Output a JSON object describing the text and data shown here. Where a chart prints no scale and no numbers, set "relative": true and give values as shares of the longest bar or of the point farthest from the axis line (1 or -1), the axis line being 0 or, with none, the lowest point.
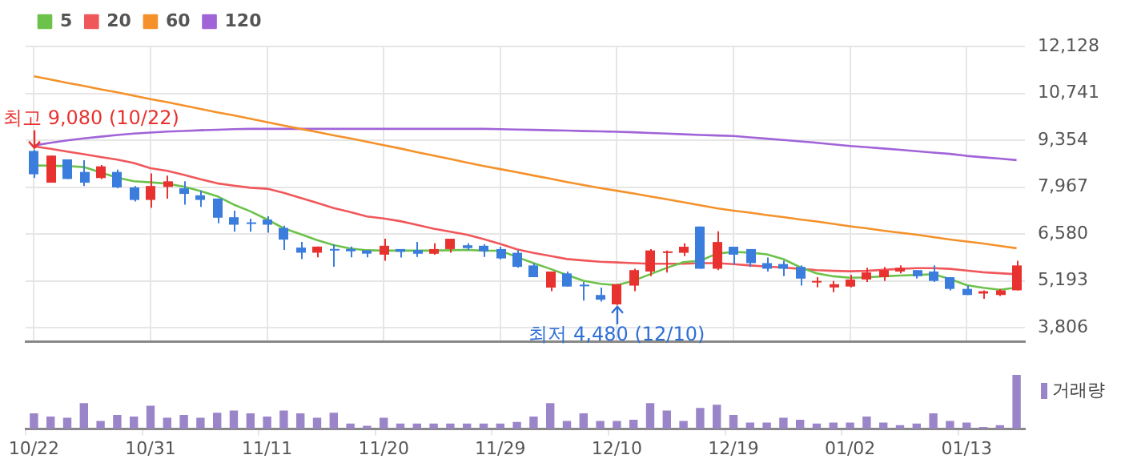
{
  "chart_data": [
    {
      "type": "candlestick",
      "categories": [
        "10/22",
        null,
        null,
        null,
        null,
        null,
        null,
        "10/31",
        null,
        null,
        null,
        null,
        null,
        null,
        "11/11",
        null,
        null,
        null,
        null,
        null,
        null,
        "11/20",
        null,
        null,
        null,
        null,
        null,
        null,
        "11/29",
        null,
        null,
        null,
        null,
        null,
        null,
        "12/10",
        null,
        null,
        null,
        null,
        null,
        null,
        "12/19",
        null,
        null,
        null,
        null,
        null,
        null,
        "01/02",
        null,
        null,
        null,
        null,
        null,
        null,
        "01/13",
        null,
        null,
        null
      ],
      "ohlc": [
        [
          9037,
          9080,
          8236,
          8347
        ],
        [
          8098,
          8899,
          8098,
          8899
        ],
        [
          8788,
          8788,
          8209,
          8209
        ],
        [
          8416,
          8761,
          8001,
          8098
        ],
        [
          8236,
          8623,
          8209,
          8581
        ],
        [
          8416,
          8485,
          7933,
          7960
        ],
        [
          7960,
          8001,
          7546,
          7588
        ],
        [
          7588,
          8374,
          7353,
          8001
        ],
        [
          7974,
          8305,
          7629,
          8139
        ],
        [
          7933,
          8139,
          7450,
          7767
        ],
        [
          7726,
          7864,
          7381,
          7588
        ],
        [
          7629,
          7629,
          6898,
          7063
        ],
        [
          7077,
          7270,
          6649,
          6856
        ],
        [
          6925,
          7036,
          6649,
          6898
        ],
        [
          7008,
          7105,
          6622,
          6856
        ],
        [
          6760,
          6829,
          6111,
          6414
        ],
        [
          6180,
          6345,
          5835,
          6028
        ],
        [
          6028,
          6208,
          5890,
          6208
        ],
        [
          6139,
          6276,
          5614,
          6111
        ],
        [
          6139,
          6208,
          5890,
          6069
        ],
        [
          6097,
          6097,
          5890,
          6000
        ],
        [
          5970,
          6441,
          5789,
          6233
        ],
        [
          6136,
          6136,
          5887,
          6053
        ],
        [
          6108,
          6344,
          5900,
          5997
        ],
        [
          5997,
          6303,
          5970,
          6136
        ],
        [
          6136,
          6441,
          6025,
          6441
        ],
        [
          6247,
          6303,
          6108,
          6164
        ],
        [
          6233,
          6275,
          5900,
          6067
        ],
        [
          6136,
          6205,
          5831,
          5859
        ],
        [
          6025,
          6108,
          5581,
          5609
        ],
        [
          5651,
          5720,
          5304,
          5304
        ],
        [
          4996,
          5471,
          4888,
          5471
        ],
        [
          5415,
          5471,
          5027,
          5027
        ],
        [
          5082,
          5165,
          4610,
          5054
        ],
        [
          4777,
          4999,
          4583,
          4638
        ],
        [
          4500,
          5096,
          4480,
          5096
        ],
        [
          5054,
          5554,
          4888,
          5512
        ],
        [
          5471,
          6136,
          5332,
          6095
        ],
        [
          6025,
          6095,
          5443,
          6067
        ],
        [
          6025,
          6303,
          5928,
          6205
        ],
        [
          6802,
          6802,
          5554,
          5554
        ],
        [
          5554,
          6663,
          5512,
          6344
        ],
        [
          6205,
          6205,
          5679,
          5970
        ],
        [
          6136,
          6136,
          5609,
          5720
        ],
        [
          5720,
          5887,
          5471,
          5554
        ],
        [
          5692,
          5789,
          5332,
          5554
        ],
        [
          5609,
          5651,
          5054,
          5262
        ],
        [
          5165,
          5304,
          5000,
          5193
        ],
        [
          5000,
          5193,
          4860,
          5096
        ],
        [
          5027,
          5373,
          5000,
          5235
        ],
        [
          5235,
          5581,
          5165,
          5443
        ],
        [
          5304,
          5609,
          5193,
          5512
        ],
        [
          5471,
          5651,
          5415,
          5581
        ],
        [
          5512,
          5512,
          5262,
          5332
        ],
        [
          5471,
          5651,
          5165,
          5193
        ],
        [
          5304,
          5304,
          4915,
          4957
        ],
        [
          4957,
          5054,
          4777,
          4777
        ],
        [
          4819,
          4915,
          4666,
          4888
        ],
        [
          4777,
          4957,
          4749,
          4915
        ],
        [
          4915,
          5789,
          4915,
          5651
        ]
      ],
      "colors": [
        "#3b7ddd",
        "#e8322f",
        "#3b7ddd",
        "#3b7ddd",
        "#e8322f",
        "#3b7ddd",
        "#3b7ddd",
        "#e8322f",
        "#e8322f",
        "#3b7ddd",
        "#3b7ddd",
        "#3b7ddd",
        "#3b7ddd",
        "#3b7ddd",
        "#3b7ddd",
        "#3b7ddd",
        "#3b7ddd",
        "#e8322f",
        "#3b7ddd",
        "#3b7ddd",
        "#3b7ddd",
        "#e8322f",
        "#3b7ddd",
        "#3b7ddd",
        "#e8322f",
        "#e8322f",
        "#3b7ddd",
        "#3b7ddd",
        "#3b7ddd",
        "#3b7ddd",
        "#3b7ddd",
        "#e8322f",
        "#3b7ddd",
        "#3b7ddd",
        "#3b7ddd",
        "#e8322f",
        "#e8322f",
        "#e8322f",
        "#e8322f",
        "#e8322f",
        "#3b7ddd",
        "#e8322f",
        "#3b7ddd",
        "#3b7ddd",
        "#3b7ddd",
        "#3b7ddd",
        "#3b7ddd",
        "#e8322f",
        "#e8322f",
        "#e8322f",
        "#e8322f",
        "#e8322f",
        "#e8322f",
        "#3b7ddd",
        "#3b7ddd",
        "#3b7ddd",
        "#3b7ddd",
        "#e8322f",
        "#e8322f",
        "#e8322f"
      ],
      "series": [
        {
          "name": "5",
          "type": "line",
          "color": "#6cc24a",
          "values": [
            8610,
            8600,
            8590,
            8560,
            8400,
            8250,
            8140,
            8110,
            8070,
            7980,
            7850,
            7700,
            7450,
            7250,
            7010,
            6750,
            6580,
            6400,
            6250,
            6150,
            6100,
            6090,
            6090,
            6090,
            6090,
            6100,
            6110,
            6090,
            6088,
            5900,
            5720,
            5550,
            5370,
            5200,
            5110,
            5067,
            5200,
            5391,
            5580,
            5750,
            5790,
            6000,
            6050,
            6030,
            5979,
            5837,
            5600,
            5416,
            5330,
            5285,
            5300,
            5330,
            5350,
            5370,
            5391,
            5250,
            5067,
            4990,
            4930,
            4995
          ]
        },
        {
          "name": "20",
          "type": "line",
          "color": "#f0575a",
          "values": [
            9173,
            9100,
            9020,
            8940,
            8860,
            8780,
            8680,
            8526,
            8450,
            8330,
            8200,
            8080,
            8010,
            7950,
            7920,
            7800,
            7650,
            7500,
            7350,
            7230,
            7100,
            7040,
            6960,
            6850,
            6740,
            6650,
            6560,
            6430,
            6290,
            6130,
            6020,
            5930,
            5840,
            5800,
            5760,
            5740,
            5720,
            5700,
            5700,
            5700,
            5720,
            5720,
            5690,
            5650,
            5620,
            5590,
            5550,
            5510,
            5490,
            5480,
            5490,
            5520,
            5550,
            5570,
            5571,
            5550,
            5500,
            5450,
            5420,
            5391
          ]
        },
        {
          "name": "60",
          "type": "line",
          "color": "#f5912a",
          "values": [
            11245,
            11150,
            11050,
            10960,
            10860,
            10770,
            10670,
            10570,
            10480,
            10380,
            10280,
            10180,
            10090,
            9990,
            9890,
            9790,
            9690,
            9600,
            9500,
            9410,
            9310,
            9210,
            9110,
            9000,
            8900,
            8800,
            8690,
            8590,
            8500,
            8410,
            8310,
            8220,
            8120,
            8030,
            7940,
            7860,
            7780,
            7690,
            7610,
            7520,
            7430,
            7340,
            7270,
            7210,
            7140,
            7080,
            7010,
            6950,
            6880,
            6810,
            6750,
            6680,
            6620,
            6560,
            6490,
            6420,
            6360,
            6300,
            6230,
            6160
          ]
        },
        {
          "name": "120",
          "type": "line",
          "color": "#a063d8",
          "values": [
            9199,
            9280,
            9350,
            9410,
            9460,
            9510,
            9551,
            9580,
            9610,
            9630,
            9650,
            9665,
            9680,
            9690,
            9690,
            9690,
            9690,
            9690,
            9690,
            9690,
            9690,
            9690,
            9690,
            9690,
            9690,
            9690,
            9690,
            9690,
            9680,
            9670,
            9660,
            9650,
            9640,
            9625,
            9615,
            9606,
            9590,
            9570,
            9550,
            9530,
            9510,
            9495,
            9480,
            9440,
            9400,
            9360,
            9320,
            9280,
            9230,
            9186,
            9150,
            9110,
            9070,
            9030,
            8990,
            8950,
            8892,
            8850,
            8810,
            8766
          ]
        }
      ],
      "ylim": [
        3390,
        12128
      ],
      "yticks": [
        {
          "value": 3806,
          "label": "3,806"
        },
        {
          "value": 5193,
          "label": "5,193"
        },
        {
          "value": 6580,
          "label": "6,580"
        },
        {
          "value": 7967,
          "label": "7,967"
        },
        {
          "value": 9354,
          "label": "9,354"
        },
        {
          "value": 10741,
          "label": "10,741"
        },
        {
          "value": 12128,
          "label": "12,128"
        }
      ],
      "grid": true,
      "legend": "top left",
      "tick_labels": "y",
      "marker": "none",
      "annotations": [
        {
          "text": "최고 9,080 (10/22)",
          "x": "10/22",
          "y": 9080
        },
        {
          "text": "최저 4,480 (12/10)",
          "x": "12/10",
          "y": 4480
        }
      ]
    },
    {
      "type": "bar",
      "categories": [
        "10/22",
        null,
        null,
        null,
        null,
        null,
        null,
        "10/31",
        null,
        null,
        null,
        null,
        null,
        null,
        "11/11",
        null,
        null,
        null,
        null,
        null,
        null,
        "11/20",
        null,
        null,
        null,
        null,
        null,
        null,
        "11/29",
        null,
        null,
        null,
        null,
        null,
        null,
        "12/10",
        null,
        null,
        null,
        null,
        null,
        null,
        "12/19",
        null,
        null,
        null,
        null,
        null,
        null,
        "01/02",
        null,
        null,
        null,
        null,
        null,
        null,
        "01/13",
        null,
        null,
        null
      ],
      "series": [
        {
          "name": "거래량",
          "color": "#9b85c9",
          "values": [
            0.29,
            0.23,
            0.21,
            0.48,
            0.15,
            0.26,
            0.23,
            0.43,
            0.21,
            0.26,
            0.21,
            0.3,
            0.34,
            0.29,
            0.23,
            0.34,
            0.29,
            0.21,
            0.3,
            0.1,
            0.06,
            0.21,
            0.1,
            0.1,
            0.1,
            0.1,
            0.1,
            0.1,
            0.1,
            0.13,
            0.23,
            0.48,
            0.15,
            0.29,
            0.15,
            0.15,
            0.17,
            0.48,
            0.34,
            0.15,
            0.39,
            0.45,
            0.26,
            0.12,
            0.12,
            0.21,
            0.17,
            0.1,
            0.12,
            0.12,
            0.23,
            0.12,
            0.07,
            0.1,
            0.29,
            0.15,
            0.12,
            0.04,
            0.07,
            1
          ]
        }
      ],
      "relative": true,
      "legend": "top right",
      "tick_labels": "x"
    }
  ]
}
